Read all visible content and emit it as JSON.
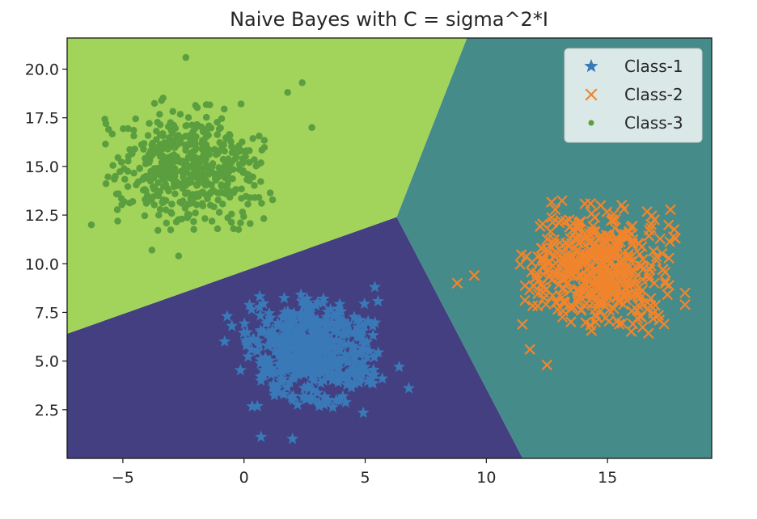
{
  "chart_data": {
    "type": "scatter",
    "title": "Naive Bayes with C = sigma^2*I",
    "xlabel": "",
    "ylabel": "",
    "xlim": [
      -7.3,
      19.3
    ],
    "ylim": [
      0.0,
      21.6
    ],
    "x_ticks": [
      -5,
      0,
      5,
      10,
      15
    ],
    "x_tick_labels": [
      "−5",
      "0",
      "5",
      "10",
      "15"
    ],
    "y_ticks": [
      2.5,
      5.0,
      7.5,
      10.0,
      12.5,
      15.0,
      17.5,
      20.0
    ],
    "y_tick_labels": [
      "2.5",
      "5.0",
      "7.5",
      "10.0",
      "12.5",
      "15.0",
      "17.5",
      "20.0"
    ],
    "grid": false,
    "legend_position": "top-right",
    "decision_regions": [
      {
        "class": "Class-1",
        "color": "#433f80",
        "polygon": [
          [
            -7.3,
            0.0
          ],
          [
            11.5,
            0.0
          ],
          [
            6.3,
            12.4
          ],
          [
            -7.3,
            6.4
          ]
        ]
      },
      {
        "class": "Class-2",
        "color": "#458b89",
        "polygon": [
          [
            11.5,
            0.0
          ],
          [
            19.3,
            0.0
          ],
          [
            19.3,
            21.6
          ],
          [
            9.2,
            21.6
          ],
          [
            6.3,
            12.4
          ]
        ]
      },
      {
        "class": "Class-3",
        "color": "#a2d45c",
        "polygon": [
          [
            -7.3,
            6.4
          ],
          [
            6.3,
            12.4
          ],
          [
            9.2,
            21.6
          ],
          [
            -7.3,
            21.6
          ]
        ]
      }
    ],
    "series": [
      {
        "name": "Class-1",
        "marker": "star",
        "color": "#3a79b8",
        "center": [
          2.8,
          5.4
        ],
        "spread": [
          1.25,
          1.3
        ],
        "count": 500,
        "extra_points": [
          [
            5.4,
            8.8
          ],
          [
            2.0,
            1.0
          ],
          [
            -0.8,
            6.0
          ],
          [
            6.8,
            3.6
          ],
          [
            6.4,
            4.7
          ],
          [
            0.7,
            1.1
          ],
          [
            -0.5,
            6.8
          ]
        ]
      },
      {
        "name": "Class-2",
        "marker": "x",
        "color": "#f0852d",
        "center": [
          14.6,
          9.8
        ],
        "spread": [
          1.35,
          1.45
        ],
        "count": 500,
        "extra_points": [
          [
            8.8,
            9.0
          ],
          [
            18.2,
            8.5
          ],
          [
            18.2,
            7.9
          ],
          [
            12.5,
            4.8
          ],
          [
            11.8,
            5.6
          ],
          [
            17.8,
            11.3
          ],
          [
            9.5,
            9.4
          ]
        ]
      },
      {
        "name": "Class-3",
        "marker": "dot",
        "color": "#5a9e3f",
        "center": [
          -2.3,
          15.0
        ],
        "spread": [
          1.45,
          1.5
        ],
        "count": 500,
        "extra_points": [
          [
            -2.4,
            20.6
          ],
          [
            -5.7,
            17.2
          ],
          [
            2.8,
            17.0
          ],
          [
            -6.3,
            12.0
          ],
          [
            -3.8,
            10.7
          ],
          [
            -2.7,
            10.4
          ],
          [
            2.4,
            19.3
          ],
          [
            1.8,
            18.8
          ]
        ]
      }
    ],
    "legend": [
      {
        "label": "Class-1",
        "marker": "star",
        "color": "#3a79b8"
      },
      {
        "label": "Class-2",
        "marker": "x",
        "color": "#f0852d"
      },
      {
        "label": "Class-3",
        "marker": "dot",
        "color": "#5a9e3f"
      }
    ]
  }
}
